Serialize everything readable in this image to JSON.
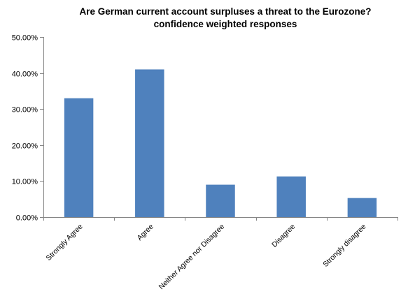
{
  "chart_data": {
    "type": "bar",
    "title": "Are German current account surpluses a threat to the Eurozone?",
    "subtitle": "confidence weighted responses",
    "categories": [
      "Strongly Agree",
      "Agree",
      "Neither Agree nor Disagree",
      "Disagree",
      "Strongly disagree"
    ],
    "values": [
      0.33,
      0.41,
      0.09,
      0.113,
      0.053
    ],
    "ylim": [
      0,
      0.5
    ],
    "yticks": [
      0,
      0.1,
      0.2,
      0.3,
      0.4,
      0.5
    ],
    "ytick_labels": [
      "0.00%",
      "10.00%",
      "20.00%",
      "30.00%",
      "40.00%",
      "50.00%"
    ],
    "xlabel": "",
    "ylabel": "",
    "grid": false,
    "legend": false,
    "bar_color": "#4f81bd"
  }
}
